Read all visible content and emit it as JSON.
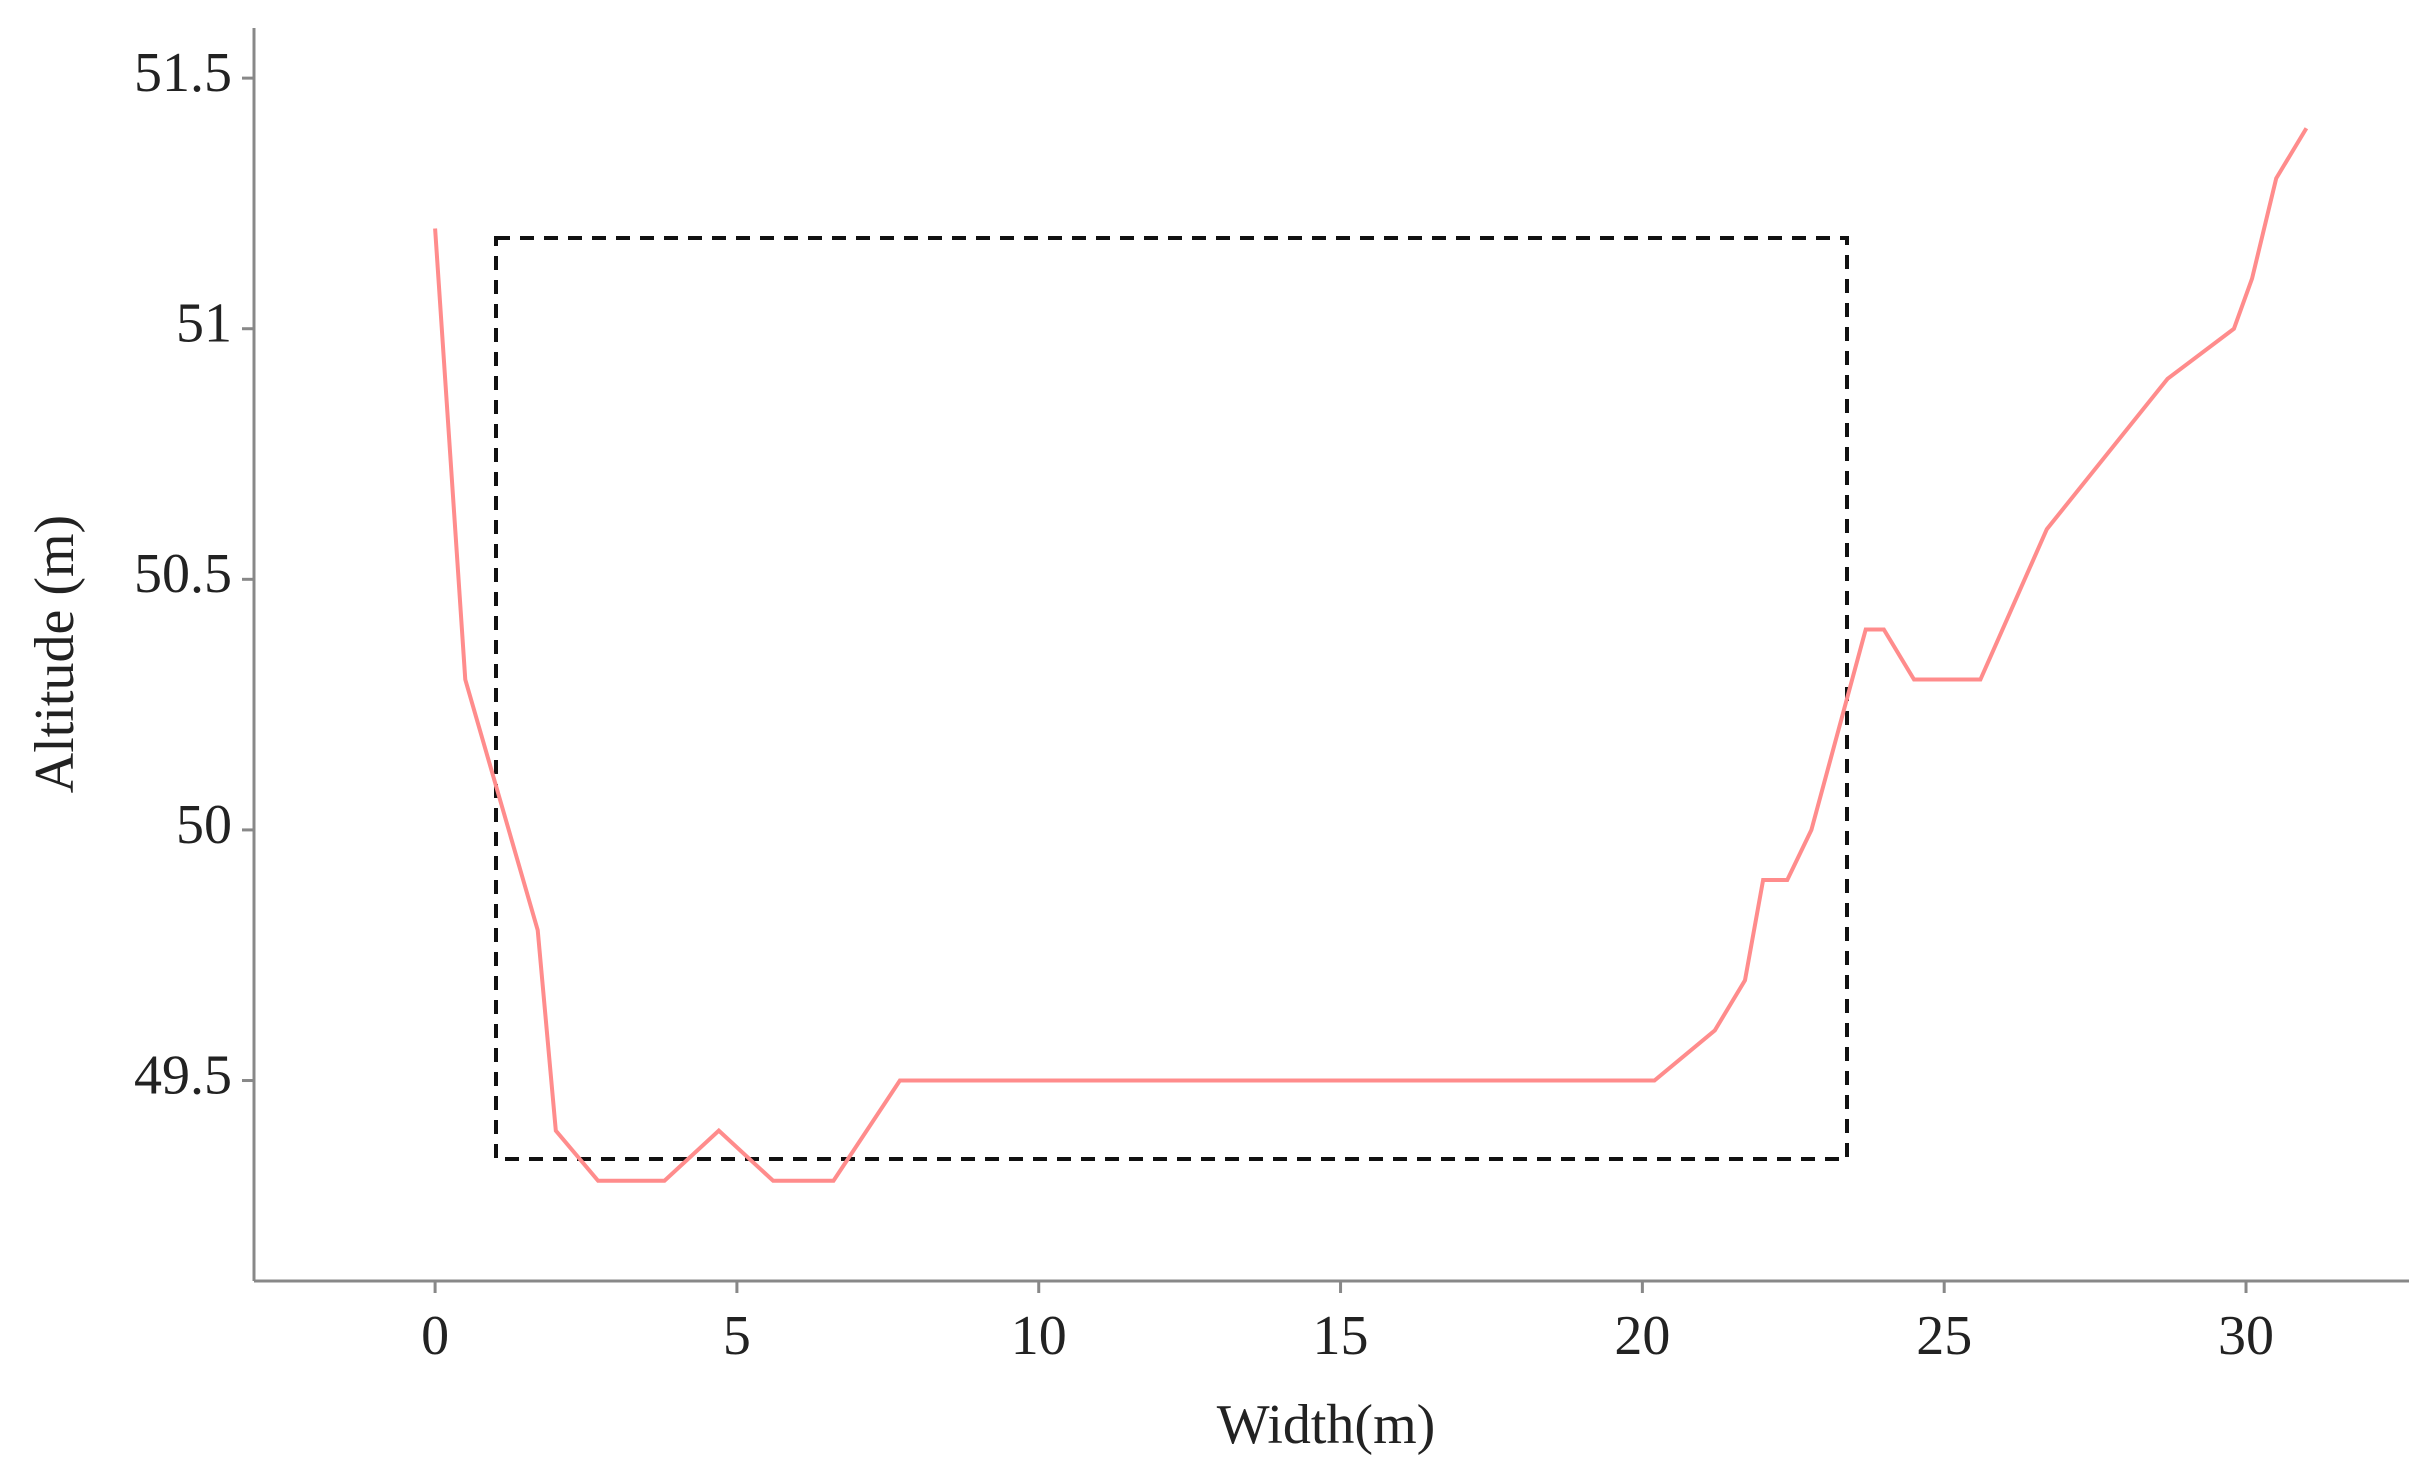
{
  "chart_data": {
    "type": "line",
    "x_label": "Width(m)",
    "y_label": "Altitude (m)",
    "x": [
      0,
      0.5,
      1.7,
      2,
      2.7,
      3.8,
      4.7,
      5.6,
      6.6,
      7.7,
      20.2,
      21.2,
      21.7,
      22,
      22.4,
      22.8,
      23.7,
      24,
      24.5,
      25.6,
      26.7,
      28.7,
      29.8,
      30.1,
      30.5,
      31
    ],
    "series": [
      {
        "color": "#ff8c8c",
        "values": [
          51.2,
          50.3,
          49.8,
          49.4,
          49.3,
          49.3,
          49.4,
          49.3,
          49.3,
          49.5,
          49.5,
          49.6,
          49.7,
          49.9,
          49.9,
          50,
          50.4,
          50.4,
          50.3,
          50.3,
          50.6,
          50.9,
          51,
          51.1,
          51.3,
          51.4
        ]
      }
    ],
    "xlim": [
      -3,
      32.7
    ],
    "ylim": [
      49.1,
      51.6
    ],
    "xticks": [
      0,
      5,
      10,
      15,
      20,
      25,
      30
    ],
    "yticks": [
      49.5,
      50,
      50.5,
      51,
      51.5
    ]
  }
}
